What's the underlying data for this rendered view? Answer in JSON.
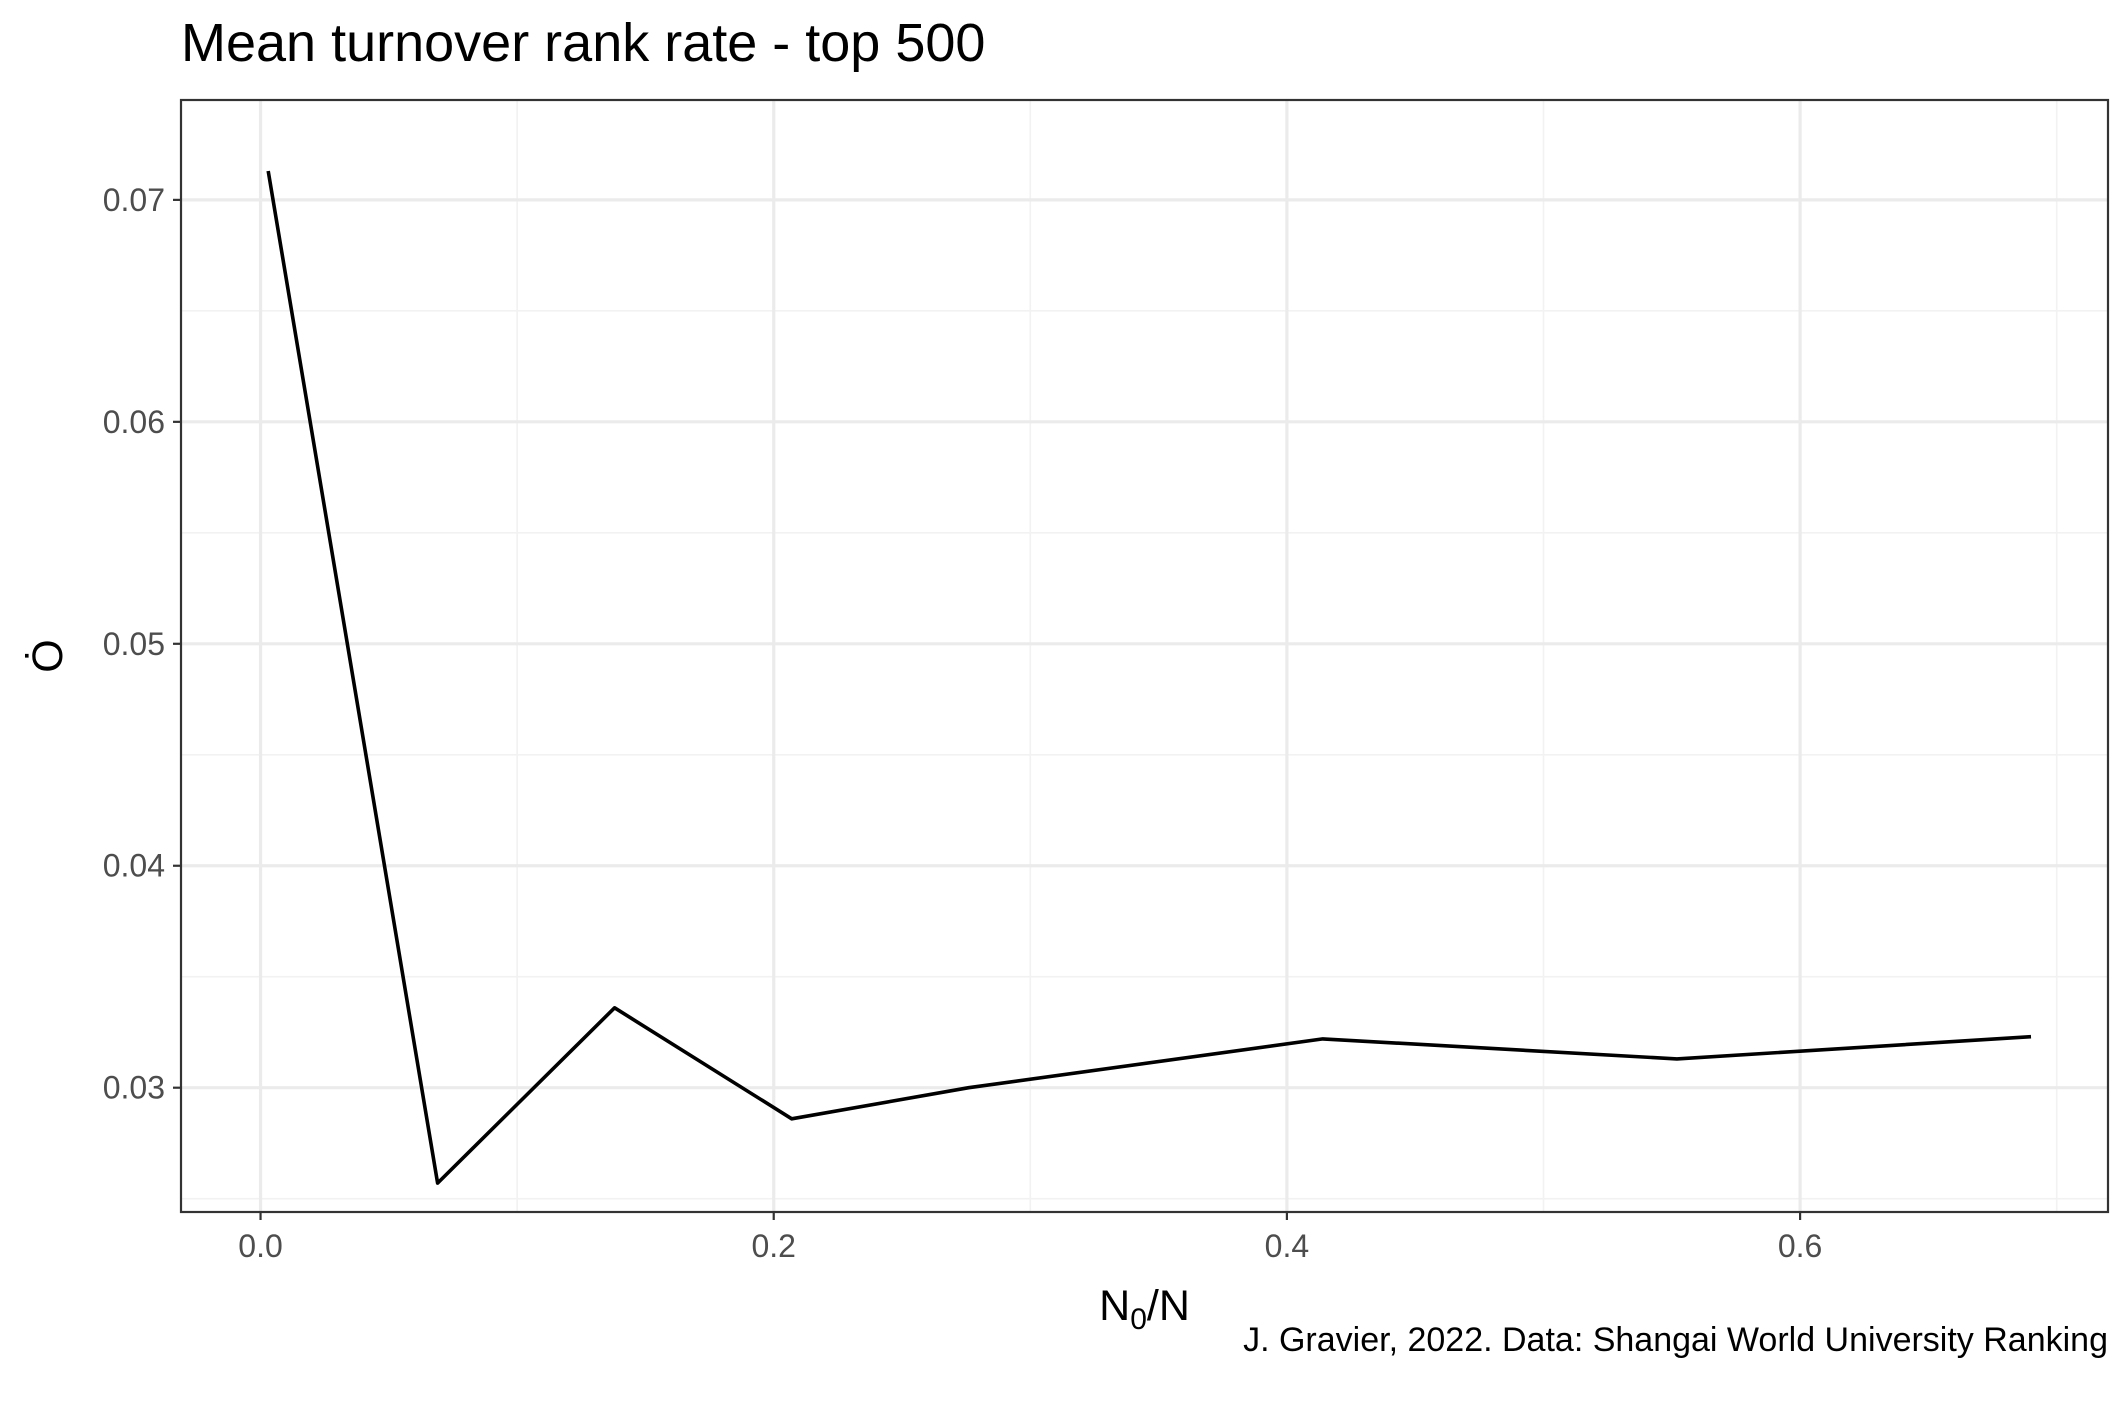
{
  "chart_data": {
    "type": "line",
    "title": "Mean turnover rank rate - top 500",
    "xlabel": "N",
    "xlabel_sub": "0",
    "xlabel_suffix": "/N",
    "ylabel": "Ȯ",
    "caption": "J. Gravier, 2022. Data: Shangai World University Ranking",
    "xlim": [
      -0.031,
      0.72
    ],
    "ylim": [
      0.0244,
      0.0745
    ],
    "x_ticks": [
      0.0,
      0.2,
      0.4,
      0.6
    ],
    "x_tick_labels": [
      "0.0",
      "0.2",
      "0.4",
      "0.6"
    ],
    "x_minor_ticks": [
      0.1,
      0.3,
      0.5,
      0.7
    ],
    "y_ticks": [
      0.03,
      0.04,
      0.05,
      0.06,
      0.07
    ],
    "y_tick_labels": [
      "0.03",
      "0.04",
      "0.05",
      "0.06",
      "0.07"
    ],
    "y_minor_ticks": [
      0.025,
      0.035,
      0.045,
      0.055,
      0.065
    ],
    "grid": true,
    "series": [
      {
        "color": "#000000",
        "x": [
          0.003,
          0.069,
          0.138,
          0.207,
          0.276,
          0.414,
          0.552,
          0.69
        ],
        "y": [
          0.0713,
          0.0257,
          0.0336,
          0.0286,
          0.03,
          0.0322,
          0.0313,
          0.0323
        ]
      }
    ]
  }
}
